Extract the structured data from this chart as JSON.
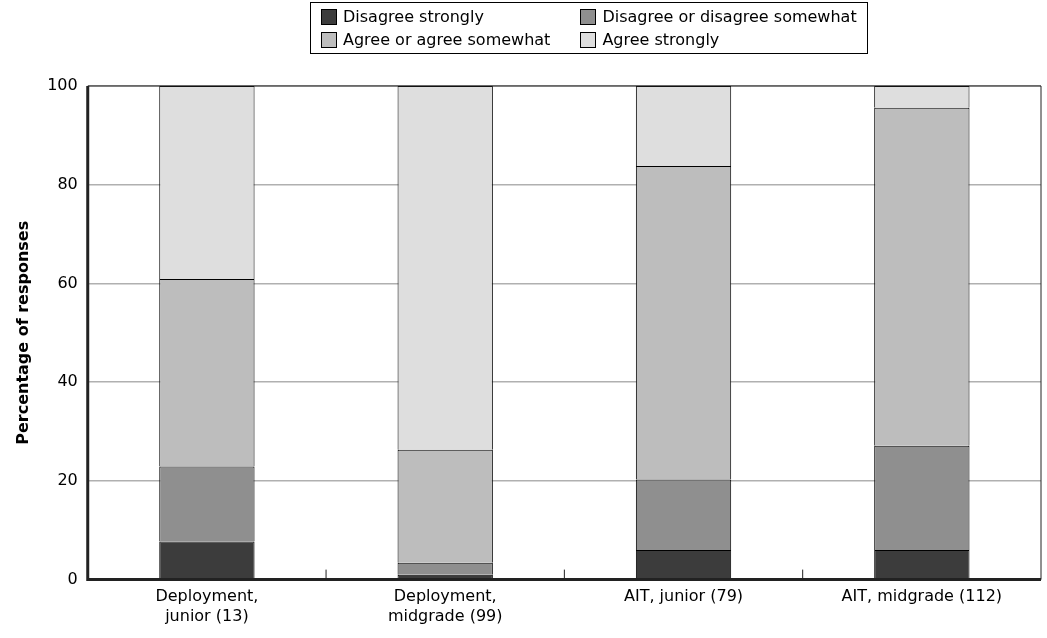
{
  "chart_data": {
    "type": "bar",
    "stacked": true,
    "ylabel": "Percentage of responses",
    "categories": [
      "Deployment,\njunior (13)",
      "Deployment,\nmidgrade (99)",
      "AIT, junior (79)",
      "AIT, midgrade (112)"
    ],
    "series": [
      {
        "name": "Disagree strongly",
        "color": "#3c3c3c",
        "values": [
          7.7,
          1.0,
          6.0,
          6.0
        ]
      },
      {
        "name": "Disagree or disagree somewhat",
        "color": "#8f8f8f",
        "values": [
          15.2,
          2.4,
          14.3,
          21.1
        ]
      },
      {
        "name": "Agree or agree somewhat",
        "color": "#bdbdbd",
        "values": [
          38.0,
          22.9,
          63.5,
          68.5
        ]
      },
      {
        "name": "Agree strongly",
        "color": "#dedede",
        "values": [
          39.1,
          73.7,
          16.2,
          4.4
        ]
      }
    ],
    "ylim": [
      0,
      100
    ],
    "yticks": [
      0,
      20,
      40,
      60,
      80,
      100
    ],
    "grid": "y",
    "legend": "top"
  }
}
